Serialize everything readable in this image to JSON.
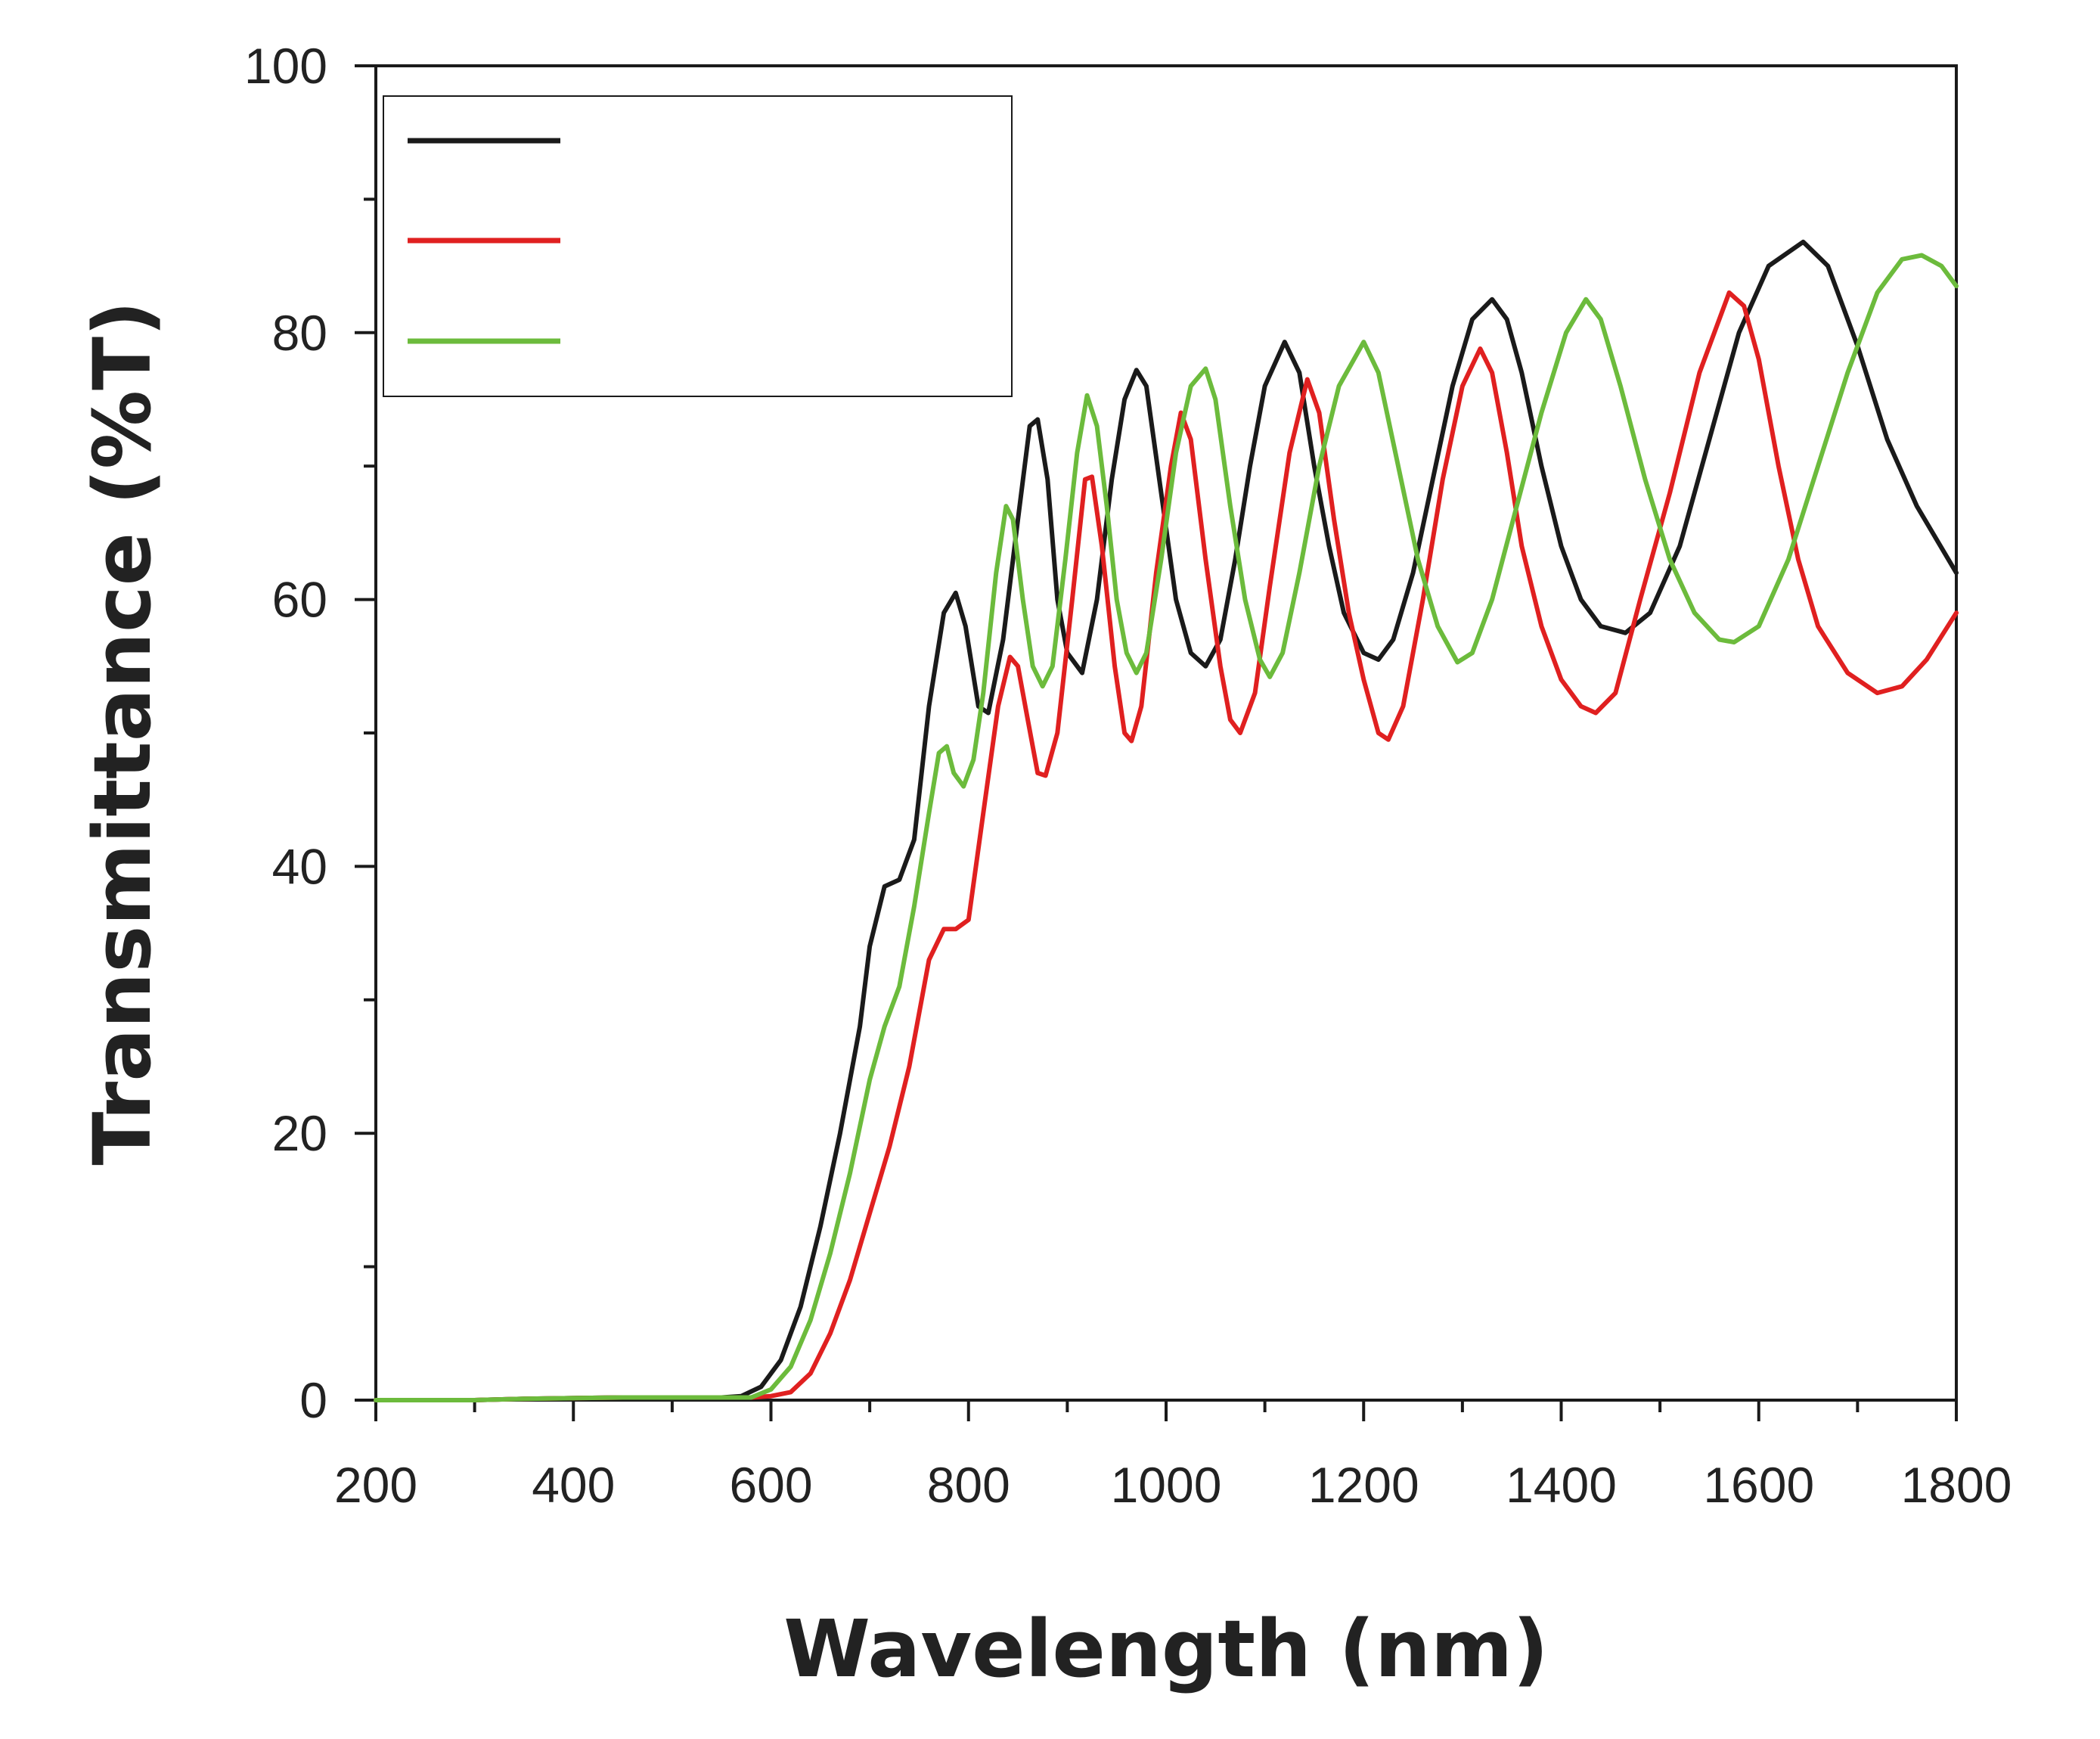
{
  "chart_data": {
    "type": "line",
    "title": "",
    "xlabel": "Wavelength (nm)",
    "ylabel": "Transmittance (%T)",
    "xlim": [
      200,
      1800
    ],
    "ylim": [
      0,
      100
    ],
    "x_ticks": [
      200,
      400,
      600,
      800,
      1000,
      1200,
      1400,
      1600,
      1800
    ],
    "y_ticks": [
      0,
      20,
      40,
      60,
      80,
      100
    ],
    "grid": false,
    "legend_position": "top-left",
    "series": [
      {
        "name": "",
        "color": "#1a1a1a",
        "points": [
          [
            200,
            0
          ],
          [
            300,
            0
          ],
          [
            350,
            0.1
          ],
          [
            450,
            0.2
          ],
          [
            500,
            0.2
          ],
          [
            550,
            0.2
          ],
          [
            570,
            0.3
          ],
          [
            590,
            1
          ],
          [
            610,
            3
          ],
          [
            630,
            7
          ],
          [
            650,
            13
          ],
          [
            670,
            20
          ],
          [
            690,
            28
          ],
          [
            700,
            34
          ],
          [
            715,
            38.5
          ],
          [
            730,
            39
          ],
          [
            745,
            42
          ],
          [
            760,
            52
          ],
          [
            775,
            59
          ],
          [
            787,
            60.5
          ],
          [
            797,
            58
          ],
          [
            810,
            52
          ],
          [
            820,
            51.5
          ],
          [
            835,
            57
          ],
          [
            850,
            66
          ],
          [
            862,
            73
          ],
          [
            870,
            73.5
          ],
          [
            880,
            69
          ],
          [
            890,
            60
          ],
          [
            900,
            56
          ],
          [
            915,
            54.5
          ],
          [
            930,
            60
          ],
          [
            945,
            69
          ],
          [
            958,
            75
          ],
          [
            970,
            77.2
          ],
          [
            980,
            76
          ],
          [
            995,
            68
          ],
          [
            1010,
            60
          ],
          [
            1025,
            56
          ],
          [
            1040,
            55
          ],
          [
            1055,
            57
          ],
          [
            1070,
            63
          ],
          [
            1085,
            70
          ],
          [
            1100,
            76
          ],
          [
            1120,
            79.3
          ],
          [
            1135,
            77
          ],
          [
            1150,
            70
          ],
          [
            1165,
            64
          ],
          [
            1180,
            59
          ],
          [
            1200,
            56
          ],
          [
            1215,
            55.5
          ],
          [
            1230,
            57
          ],
          [
            1250,
            62
          ],
          [
            1270,
            69
          ],
          [
            1290,
            76
          ],
          [
            1310,
            81
          ],
          [
            1330,
            82.5
          ],
          [
            1345,
            81
          ],
          [
            1360,
            77
          ],
          [
            1380,
            70
          ],
          [
            1400,
            64
          ],
          [
            1420,
            60
          ],
          [
            1440,
            58
          ],
          [
            1465,
            57.5
          ],
          [
            1490,
            59
          ],
          [
            1520,
            64
          ],
          [
            1550,
            72
          ],
          [
            1580,
            80
          ],
          [
            1610,
            85
          ],
          [
            1645,
            86.8
          ],
          [
            1670,
            85
          ],
          [
            1700,
            79
          ],
          [
            1730,
            72
          ],
          [
            1760,
            67
          ],
          [
            1800,
            62
          ]
        ]
      },
      {
        "name": "",
        "color": "#e02020",
        "points": [
          [
            200,
            0
          ],
          [
            300,
            0
          ],
          [
            350,
            0.1
          ],
          [
            450,
            0.2
          ],
          [
            500,
            0.2
          ],
          [
            550,
            0.2
          ],
          [
            580,
            0.2
          ],
          [
            600,
            0.3
          ],
          [
            620,
            0.6
          ],
          [
            640,
            2
          ],
          [
            660,
            5
          ],
          [
            680,
            9
          ],
          [
            700,
            14
          ],
          [
            720,
            19
          ],
          [
            740,
            25
          ],
          [
            760,
            33
          ],
          [
            775,
            35.3
          ],
          [
            787,
            35.3
          ],
          [
            800,
            36
          ],
          [
            815,
            44
          ],
          [
            830,
            52
          ],
          [
            842,
            55.7
          ],
          [
            850,
            55
          ],
          [
            860,
            51
          ],
          [
            870,
            47
          ],
          [
            878,
            46.8
          ],
          [
            890,
            50
          ],
          [
            905,
            60
          ],
          [
            918,
            69
          ],
          [
            925,
            69.2
          ],
          [
            935,
            64
          ],
          [
            948,
            55
          ],
          [
            958,
            50
          ],
          [
            965,
            49.4
          ],
          [
            975,
            52
          ],
          [
            990,
            62
          ],
          [
            1005,
            70
          ],
          [
            1015,
            74
          ],
          [
            1025,
            72
          ],
          [
            1040,
            63
          ],
          [
            1055,
            55
          ],
          [
            1065,
            51
          ],
          [
            1075,
            50
          ],
          [
            1090,
            53
          ],
          [
            1105,
            61
          ],
          [
            1125,
            71
          ],
          [
            1143,
            76.5
          ],
          [
            1155,
            74
          ],
          [
            1170,
            66
          ],
          [
            1185,
            59
          ],
          [
            1200,
            54
          ],
          [
            1215,
            50
          ],
          [
            1225,
            49.5
          ],
          [
            1240,
            52
          ],
          [
            1260,
            60
          ],
          [
            1280,
            69
          ],
          [
            1300,
            76
          ],
          [
            1318,
            78.8
          ],
          [
            1330,
            77
          ],
          [
            1345,
            71
          ],
          [
            1360,
            64
          ],
          [
            1380,
            58
          ],
          [
            1400,
            54
          ],
          [
            1420,
            52
          ],
          [
            1435,
            51.5
          ],
          [
            1455,
            53
          ],
          [
            1480,
            60
          ],
          [
            1510,
            68
          ],
          [
            1540,
            77
          ],
          [
            1570,
            83
          ],
          [
            1585,
            82
          ],
          [
            1600,
            78
          ],
          [
            1620,
            70
          ],
          [
            1640,
            63
          ],
          [
            1660,
            58
          ],
          [
            1690,
            54.5
          ],
          [
            1720,
            53
          ],
          [
            1745,
            53.5
          ],
          [
            1770,
            55.5
          ],
          [
            1800,
            59
          ]
        ]
      },
      {
        "name": "",
        "color": "#6cbb3c",
        "points": [
          [
            200,
            0
          ],
          [
            300,
            0
          ],
          [
            350,
            0.1
          ],
          [
            450,
            0.2
          ],
          [
            500,
            0.2
          ],
          [
            550,
            0.2
          ],
          [
            580,
            0.2
          ],
          [
            600,
            0.8
          ],
          [
            620,
            2.5
          ],
          [
            640,
            6
          ],
          [
            660,
            11
          ],
          [
            680,
            17
          ],
          [
            700,
            24
          ],
          [
            715,
            28
          ],
          [
            730,
            31
          ],
          [
            745,
            37
          ],
          [
            760,
            44
          ],
          [
            770,
            48.5
          ],
          [
            778,
            49
          ],
          [
            785,
            47
          ],
          [
            795,
            46
          ],
          [
            805,
            48
          ],
          [
            815,
            53
          ],
          [
            828,
            62
          ],
          [
            838,
            67
          ],
          [
            845,
            66
          ],
          [
            855,
            60
          ],
          [
            865,
            55
          ],
          [
            875,
            53.5
          ],
          [
            885,
            55
          ],
          [
            898,
            63
          ],
          [
            910,
            71
          ],
          [
            920,
            75.3
          ],
          [
            930,
            73
          ],
          [
            940,
            67
          ],
          [
            950,
            60
          ],
          [
            960,
            56
          ],
          [
            970,
            54.5
          ],
          [
            980,
            56
          ],
          [
            995,
            63
          ],
          [
            1010,
            71
          ],
          [
            1025,
            76
          ],
          [
            1040,
            77.3
          ],
          [
            1050,
            75
          ],
          [
            1065,
            67
          ],
          [
            1080,
            60
          ],
          [
            1095,
            55.5
          ],
          [
            1105,
            54.2
          ],
          [
            1118,
            56
          ],
          [
            1135,
            62
          ],
          [
            1155,
            70
          ],
          [
            1175,
            76
          ],
          [
            1200,
            79.3
          ],
          [
            1215,
            77
          ],
          [
            1235,
            70
          ],
          [
            1255,
            63
          ],
          [
            1275,
            58
          ],
          [
            1295,
            55.3
          ],
          [
            1310,
            56
          ],
          [
            1330,
            60
          ],
          [
            1355,
            67
          ],
          [
            1380,
            74
          ],
          [
            1405,
            80
          ],
          [
            1425,
            82.5
          ],
          [
            1440,
            81
          ],
          [
            1460,
            76
          ],
          [
            1485,
            69
          ],
          [
            1510,
            63
          ],
          [
            1535,
            59
          ],
          [
            1560,
            57
          ],
          [
            1575,
            56.8
          ],
          [
            1600,
            58
          ],
          [
            1630,
            63
          ],
          [
            1660,
            70
          ],
          [
            1690,
            77
          ],
          [
            1720,
            83
          ],
          [
            1745,
            85.5
          ],
          [
            1765,
            85.8
          ],
          [
            1785,
            85
          ],
          [
            1800,
            83.5
          ]
        ]
      }
    ]
  }
}
